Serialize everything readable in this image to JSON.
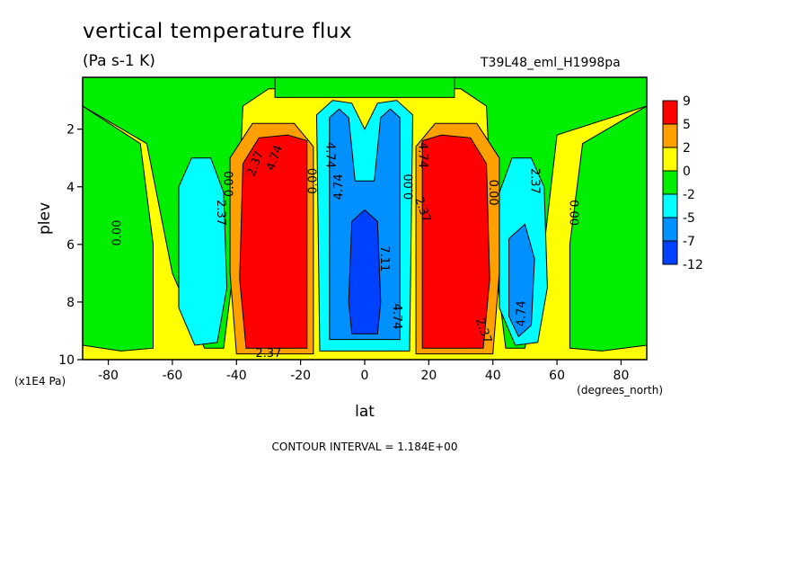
{
  "chart_data": {
    "type": "heatmap",
    "title": "vertical temperature flux",
    "subtitle": "(Pa s-1 K)",
    "run_label": "T39L48_eml_H1998pa",
    "xlabel": "lat",
    "x_unit_label": "(degrees_north)",
    "ylabel": "plev",
    "y_unit_label": "(x1E4 Pa)",
    "xlim": [
      -88,
      88
    ],
    "ylim": [
      10,
      0.2
    ],
    "x_ticks": [
      -80,
      -60,
      -40,
      -20,
      0,
      20,
      40,
      60,
      80
    ],
    "x_tick_labels": [
      "-80",
      "-60",
      "-40",
      "-20",
      "0",
      "20",
      "40",
      "60",
      "80"
    ],
    "y_ticks": [
      2,
      4,
      6,
      8,
      10
    ],
    "y_tick_labels": [
      "2",
      "4",
      "6",
      "8",
      "10"
    ],
    "contour_interval_text": "CONTOUR INTERVAL = 1.184E+00",
    "colorbar_levels": [
      "9",
      "5",
      "2",
      "0",
      "-2",
      "-5",
      "-7",
      "-12"
    ],
    "colorbar_colors": [
      "#ff0000",
      "#ff9f00",
      "#ffff00",
      "#00ee00",
      "#00ffff",
      "#0090ff",
      "#0040ff"
    ],
    "background_color": "#ffff00",
    "regions": [
      {
        "name": "green-upper",
        "level": "0 to -2",
        "color": "#00ee00",
        "points": [
          [
            -88,
            0.2
          ],
          [
            88,
            0.2
          ],
          [
            88,
            1.2
          ],
          [
            60,
            2.2
          ],
          [
            55,
            7
          ],
          [
            50,
            9.6
          ],
          [
            44,
            9.6
          ],
          [
            40,
            6
          ],
          [
            38,
            1.2
          ],
          [
            30,
            0.6
          ],
          [
            -30,
            0.6
          ],
          [
            -38,
            1.2
          ],
          [
            -40,
            6
          ],
          [
            -44,
            9.6
          ],
          [
            -50,
            9.6
          ],
          [
            -60,
            7
          ],
          [
            -68,
            2.5
          ],
          [
            -88,
            1.2
          ]
        ]
      },
      {
        "name": "green-left",
        "level": "0 to -2",
        "color": "#00ee00",
        "points": [
          [
            -88,
            1.2
          ],
          [
            -70,
            2.5
          ],
          [
            -66,
            6
          ],
          [
            -66,
            9.6
          ],
          [
            -76,
            9.7
          ],
          [
            -88,
            9.5
          ]
        ]
      },
      {
        "name": "green-right",
        "level": "0 to -2",
        "color": "#00ee00",
        "points": [
          [
            88,
            1.2
          ],
          [
            68,
            2.5
          ],
          [
            64,
            6
          ],
          [
            64,
            9.6
          ],
          [
            74,
            9.7
          ],
          [
            88,
            9.5
          ]
        ]
      },
      {
        "name": "green-top-band",
        "level": "0 to -2",
        "color": "#00ee00",
        "points": [
          [
            -28,
            0.2
          ],
          [
            28,
            0.2
          ],
          [
            28,
            0.9
          ],
          [
            -28,
            0.9
          ]
        ]
      },
      {
        "name": "cyan-left",
        "level": "-2 to -5",
        "color": "#00ffff",
        "points": [
          [
            -58,
            4.0
          ],
          [
            -54,
            3.0
          ],
          [
            -48,
            3.0
          ],
          [
            -44,
            4.2
          ],
          [
            -43,
            7.5
          ],
          [
            -46,
            9.4
          ],
          [
            -53,
            9.5
          ],
          [
            -58,
            8.2
          ]
        ]
      },
      {
        "name": "cyan-right",
        "level": "-2 to -5",
        "color": "#00ffff",
        "points": [
          [
            42,
            4.2
          ],
          [
            46,
            3.0
          ],
          [
            52,
            3.0
          ],
          [
            56,
            4.0
          ],
          [
            57,
            7.5
          ],
          [
            54,
            9.4
          ],
          [
            47,
            9.5
          ],
          [
            42,
            8.2
          ]
        ]
      },
      {
        "name": "blue-right-core",
        "level": "-5 to -7",
        "color": "#0090ff",
        "points": [
          [
            45,
            5.8
          ],
          [
            50,
            5.3
          ],
          [
            53,
            6.5
          ],
          [
            52,
            8.8
          ],
          [
            48,
            9.2
          ],
          [
            45,
            8.5
          ]
        ]
      },
      {
        "name": "orange-left",
        "level": "2 to 5",
        "color": "#ff9f00",
        "points": [
          [
            -42,
            3.0
          ],
          [
            -35,
            1.8
          ],
          [
            -22,
            1.8
          ],
          [
            -16,
            2.6
          ],
          [
            -16,
            9.8
          ],
          [
            -40,
            9.8
          ],
          [
            -42,
            7.0
          ]
        ]
      },
      {
        "name": "orange-right",
        "level": "2 to 5",
        "color": "#ff9f00",
        "points": [
          [
            16,
            2.6
          ],
          [
            22,
            1.8
          ],
          [
            35,
            1.8
          ],
          [
            42,
            3.0
          ],
          [
            42,
            7.0
          ],
          [
            40,
            9.8
          ],
          [
            16,
            9.8
          ]
        ]
      },
      {
        "name": "red-left",
        "level": "5 to 9",
        "color": "#ff0000",
        "points": [
          [
            -38,
            3.2
          ],
          [
            -33,
            2.3
          ],
          [
            -24,
            2.2
          ],
          [
            -18,
            2.4
          ],
          [
            -18,
            9.6
          ],
          [
            -37,
            9.6
          ],
          [
            -39,
            7.2
          ]
        ]
      },
      {
        "name": "red-right",
        "level": "5 to 9",
        "color": "#ff0000",
        "points": [
          [
            18,
            2.4
          ],
          [
            24,
            2.2
          ],
          [
            33,
            2.3
          ],
          [
            38,
            3.2
          ],
          [
            39,
            7.2
          ],
          [
            37,
            9.6
          ],
          [
            18,
            9.6
          ]
        ]
      },
      {
        "name": "cyan-equator",
        "level": "-2 to -5",
        "color": "#00ffff",
        "points": [
          [
            -15,
            1.5
          ],
          [
            -10,
            1.0
          ],
          [
            -4,
            1.1
          ],
          [
            0,
            2.0
          ],
          [
            4,
            1.1
          ],
          [
            10,
            1.0
          ],
          [
            15,
            1.5
          ],
          [
            14,
            9.7
          ],
          [
            -14,
            9.7
          ]
        ]
      },
      {
        "name": "blue-equator",
        "level": "-5 to -7",
        "color": "#0090ff",
        "points": [
          [
            -11,
            1.6
          ],
          [
            -8,
            1.3
          ],
          [
            -5,
            1.6
          ],
          [
            -3,
            3.8
          ],
          [
            3,
            3.8
          ],
          [
            5,
            1.6
          ],
          [
            8,
            1.3
          ],
          [
            11,
            1.6
          ],
          [
            11,
            9.3
          ],
          [
            -11,
            9.3
          ]
        ]
      },
      {
        "name": "deep-blue-equator",
        "level": "-7 to -12",
        "color": "#0040ff",
        "points": [
          [
            -4,
            5.2
          ],
          [
            0,
            4.8
          ],
          [
            4,
            5.2
          ],
          [
            5,
            8.0
          ],
          [
            4,
            9.1
          ],
          [
            -4,
            9.1
          ],
          [
            -5,
            8.0
          ]
        ]
      }
    ],
    "contour_labels": [
      {
        "text": "0.00",
        "lat": -77,
        "plev": 5.6,
        "angle": -90
      },
      {
        "text": "2.37",
        "lat": -34,
        "plev": 3.2,
        "angle": -70
      },
      {
        "text": "4.74",
        "lat": -28,
        "plev": 3.0,
        "angle": -70
      },
      {
        "text": "0.00",
        "lat": -42,
        "plev": 3.9,
        "angle": -90
      },
      {
        "text": "2.37",
        "lat": -45,
        "plev": 4.9,
        "angle": 90
      },
      {
        "text": "0.00",
        "lat": -16,
        "plev": 3.8,
        "angle": -90
      },
      {
        "text": "4.74",
        "lat": -11,
        "plev": 2.9,
        "angle": 90
      },
      {
        "text": "4.74",
        "lat": -8,
        "plev": 4.0,
        "angle": -90
      },
      {
        "text": "4.74",
        "lat": 18,
        "plev": 2.9,
        "angle": 90
      },
      {
        "text": "0.00",
        "lat": 14,
        "plev": 4.0,
        "angle": -90
      },
      {
        "text": "2.37",
        "lat": 18,
        "plev": 4.8,
        "angle": 70
      },
      {
        "text": "7.11",
        "lat": 6,
        "plev": 6.5,
        "angle": 90
      },
      {
        "text": "4.74",
        "lat": 10,
        "plev": 8.5,
        "angle": 90
      },
      {
        "text": "2.37",
        "lat": -30,
        "plev": 9.8,
        "angle": 0
      },
      {
        "text": "2.37",
        "lat": 37,
        "plev": 9.0,
        "angle": 70
      },
      {
        "text": "0.00",
        "lat": 40,
        "plev": 4.2,
        "angle": 90
      },
      {
        "text": "2.37",
        "lat": 53,
        "plev": 3.8,
        "angle": 90
      },
      {
        "text": "4.74",
        "lat": 49,
        "plev": 8.4,
        "angle": -90
      },
      {
        "text": "0.00",
        "lat": 65,
        "plev": 4.9,
        "angle": 90
      }
    ]
  }
}
